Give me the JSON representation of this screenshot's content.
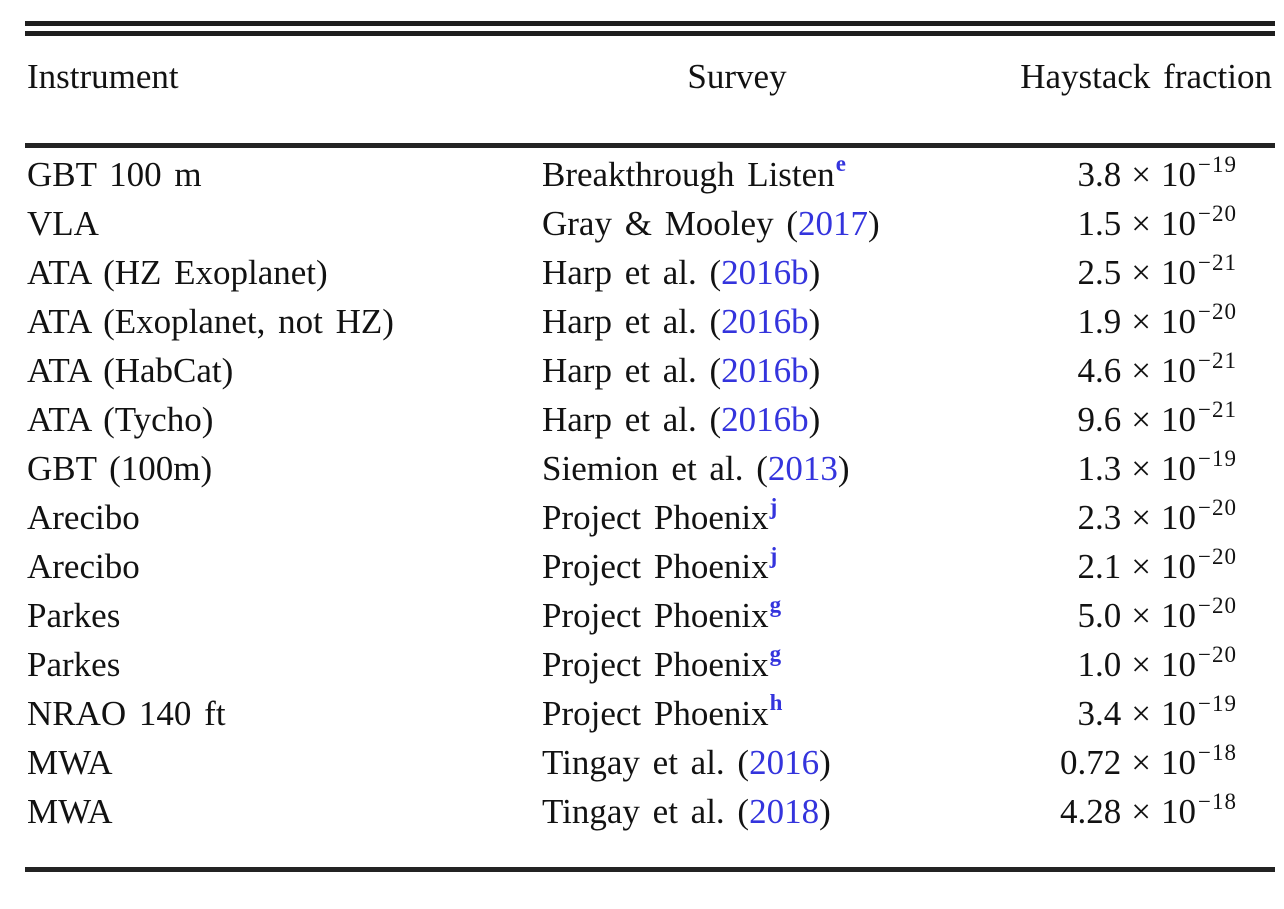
{
  "table": {
    "columns": [
      {
        "label": "Instrument"
      },
      {
        "label": "Survey"
      },
      {
        "label": "Haystack fraction"
      }
    ],
    "multiplication_sign": "×",
    "colors": {
      "link_blue": "#3434dd",
      "text": "#121212",
      "rule": "#232323"
    },
    "rows": [
      {
        "instrument": "GBT 100 m",
        "survey": {
          "text": "Breakthrough Listen",
          "sup": "e"
        },
        "fraction": {
          "coefficient": "3.8",
          "base": "10",
          "exponent": "−19"
        }
      },
      {
        "instrument": "VLA",
        "survey": {
          "text": "Gray & Mooley (",
          "link": "2017",
          "after": ")"
        },
        "fraction": {
          "coefficient": "1.5",
          "base": "10",
          "exponent": "−20"
        }
      },
      {
        "instrument": "ATA (HZ Exoplanet)",
        "survey": {
          "text": "Harp et al. (",
          "link": "2016b",
          "after": ")"
        },
        "fraction": {
          "coefficient": "2.5",
          "base": "10",
          "exponent": "−21"
        }
      },
      {
        "instrument": "ATA (Exoplanet, not HZ)",
        "survey": {
          "text": "Harp et al. (",
          "link": "2016b",
          "after": ")"
        },
        "fraction": {
          "coefficient": "1.9",
          "base": "10",
          "exponent": "−20"
        }
      },
      {
        "instrument": "ATA (HabCat)",
        "survey": {
          "text": "Harp et al. (",
          "link": "2016b",
          "after": ")"
        },
        "fraction": {
          "coefficient": "4.6",
          "base": "10",
          "exponent": "−21"
        }
      },
      {
        "instrument": "ATA (Tycho)",
        "survey": {
          "text": "Harp et al. (",
          "link": "2016b",
          "after": ")"
        },
        "fraction": {
          "coefficient": "9.6",
          "base": "10",
          "exponent": "−21"
        }
      },
      {
        "instrument": "GBT (100m)",
        "survey": {
          "text": "Siemion et al. (",
          "link": "2013",
          "after": ")"
        },
        "fraction": {
          "coefficient": "1.3",
          "base": "10",
          "exponent": "−19"
        }
      },
      {
        "instrument": "Arecibo",
        "survey": {
          "text": "Project Phoenix",
          "sup": "j"
        },
        "fraction": {
          "coefficient": "2.3",
          "base": "10",
          "exponent": "−20"
        }
      },
      {
        "instrument": "Arecibo",
        "survey": {
          "text": "Project Phoenix",
          "sup": "j"
        },
        "fraction": {
          "coefficient": "2.1",
          "base": "10",
          "exponent": "−20"
        }
      },
      {
        "instrument": "Parkes",
        "survey": {
          "text": "Project Phoenix",
          "sup": "g"
        },
        "fraction": {
          "coefficient": "5.0",
          "base": "10",
          "exponent": "−20"
        }
      },
      {
        "instrument": "Parkes",
        "survey": {
          "text": "Project Phoenix",
          "sup": "g"
        },
        "fraction": {
          "coefficient": "1.0",
          "base": "10",
          "exponent": "−20"
        }
      },
      {
        "instrument": "NRAO 140 ft",
        "survey": {
          "text": "Project Phoenix",
          "sup": "h"
        },
        "fraction": {
          "coefficient": "3.4",
          "base": "10",
          "exponent": "−19"
        }
      },
      {
        "instrument": "MWA",
        "survey": {
          "text": "Tingay et al. (",
          "link": "2016",
          "after": ")"
        },
        "fraction": {
          "coefficient": "0.72",
          "base": "10",
          "exponent": "−18"
        }
      },
      {
        "instrument": "MWA",
        "survey": {
          "text": "Tingay et al. (",
          "link": "2018",
          "after": ")"
        },
        "fraction": {
          "coefficient": "4.28",
          "base": "10",
          "exponent": "−18"
        }
      }
    ]
  }
}
